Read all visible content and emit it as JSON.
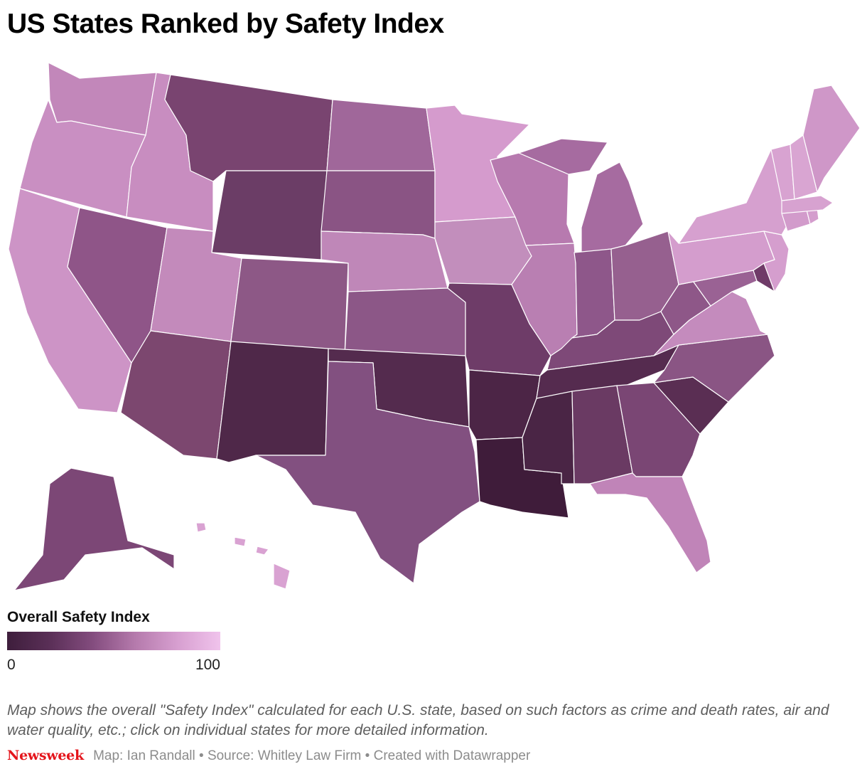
{
  "title": "US States Ranked by Safety Index",
  "legend": {
    "title": "Overall Safety Index",
    "min_label": "0",
    "max_label": "100",
    "color_scale": [
      "#3e1e3c",
      "#5a2f57",
      "#834c7e",
      "#b57aac",
      "#d79fd0",
      "#f0c3ec"
    ]
  },
  "notes": "Map shows the overall \"Safety Index\" calculated for each U.S. state, based on such factors as crime and death rates, air and water quality, etc.; click on individual states for more detailed information.",
  "footer": {
    "brand": "Newsweek",
    "credit": "Map: Ian Randall • Source: Whitley Law Firm • Created with Datawrapper"
  },
  "states": [
    {
      "code": "WA",
      "name": "Washington",
      "color": "#c287ba"
    },
    {
      "code": "OR",
      "name": "Oregon",
      "color": "#c98fc2"
    },
    {
      "code": "CA",
      "name": "California",
      "color": "#cd94c6"
    },
    {
      "code": "ID",
      "name": "Idaho",
      "color": "#c88dc0"
    },
    {
      "code": "NV",
      "name": "Nevada",
      "color": "#8f5588"
    },
    {
      "code": "MT",
      "name": "Montana",
      "color": "#794470"
    },
    {
      "code": "WY",
      "name": "Wyoming",
      "color": "#6b3d66"
    },
    {
      "code": "UT",
      "name": "Utah",
      "color": "#c38abb"
    },
    {
      "code": "AZ",
      "name": "Arizona",
      "color": "#7c476f"
    },
    {
      "code": "CO",
      "name": "Colorado",
      "color": "#8d5886"
    },
    {
      "code": "NM",
      "name": "New Mexico",
      "color": "#4f2849"
    },
    {
      "code": "ND",
      "name": "North Dakota",
      "color": "#a0679a"
    },
    {
      "code": "SD",
      "name": "South Dakota",
      "color": "#8a5484"
    },
    {
      "code": "NE",
      "name": "Nebraska",
      "color": "#bf87b8"
    },
    {
      "code": "KS",
      "name": "Kansas",
      "color": "#8c5787"
    },
    {
      "code": "OK",
      "name": "Oklahoma",
      "color": "#542b4e"
    },
    {
      "code": "TX",
      "name": "Texas",
      "color": "#825080"
    },
    {
      "code": "MN",
      "name": "Minnesota",
      "color": "#d59bcd"
    },
    {
      "code": "IA",
      "name": "Iowa",
      "color": "#c28ebc"
    },
    {
      "code": "MO",
      "name": "Missouri",
      "color": "#6e3c68"
    },
    {
      "code": "AR",
      "name": "Arkansas",
      "color": "#4c2546"
    },
    {
      "code": "LA",
      "name": "Louisiana",
      "color": "#3f1c3a"
    },
    {
      "code": "WI",
      "name": "Wisconsin",
      "color": "#b77aaf"
    },
    {
      "code": "IL",
      "name": "Illinois",
      "color": "#b97fb2"
    },
    {
      "code": "MI",
      "name": "Michigan",
      "color": "#a66ba0"
    },
    {
      "code": "IN",
      "name": "Indiana",
      "color": "#8e578a"
    },
    {
      "code": "OH",
      "name": "Ohio",
      "color": "#96608f"
    },
    {
      "code": "KY",
      "name": "Kentucky",
      "color": "#7e4978"
    },
    {
      "code": "TN",
      "name": "Tennessee",
      "color": "#552b4f"
    },
    {
      "code": "MS",
      "name": "Mississippi",
      "color": "#4a2545"
    },
    {
      "code": "AL",
      "name": "Alabama",
      "color": "#6a3a63"
    },
    {
      "code": "GA",
      "name": "Georgia",
      "color": "#7a4674"
    },
    {
      "code": "FL",
      "name": "Florida",
      "color": "#c084b8"
    },
    {
      "code": "SC",
      "name": "South Carolina",
      "color": "#5a2e53"
    },
    {
      "code": "NC",
      "name": "North Carolina",
      "color": "#8a5584"
    },
    {
      "code": "VA",
      "name": "Virginia",
      "color": "#c48bbd"
    },
    {
      "code": "WV",
      "name": "West Virginia",
      "color": "#8e5788"
    },
    {
      "code": "MD",
      "name": "Maryland",
      "color": "#9a6294"
    },
    {
      "code": "DE",
      "name": "Delaware",
      "color": "#6f3b68"
    },
    {
      "code": "PA",
      "name": "Pennsylvania",
      "color": "#d49dcd"
    },
    {
      "code": "NJ",
      "name": "New Jersey",
      "color": "#d59ece"
    },
    {
      "code": "NY",
      "name": "New York",
      "color": "#d6a0cf"
    },
    {
      "code": "CT",
      "name": "Connecticut",
      "color": "#d29bcb"
    },
    {
      "code": "RI",
      "name": "Rhode Island",
      "color": "#d49dcd"
    },
    {
      "code": "MA",
      "name": "Massachusetts",
      "color": "#d7a2d0"
    },
    {
      "code": "VT",
      "name": "Vermont",
      "color": "#d8a3d1"
    },
    {
      "code": "NH",
      "name": "New Hampshire",
      "color": "#d9a5d2"
    },
    {
      "code": "ME",
      "name": "Maine",
      "color": "#cf97c8"
    },
    {
      "code": "AK",
      "name": "Alaska",
      "color": "#7c4776"
    },
    {
      "code": "HI",
      "name": "Hawaii",
      "color": "#d9a2d2"
    }
  ]
}
